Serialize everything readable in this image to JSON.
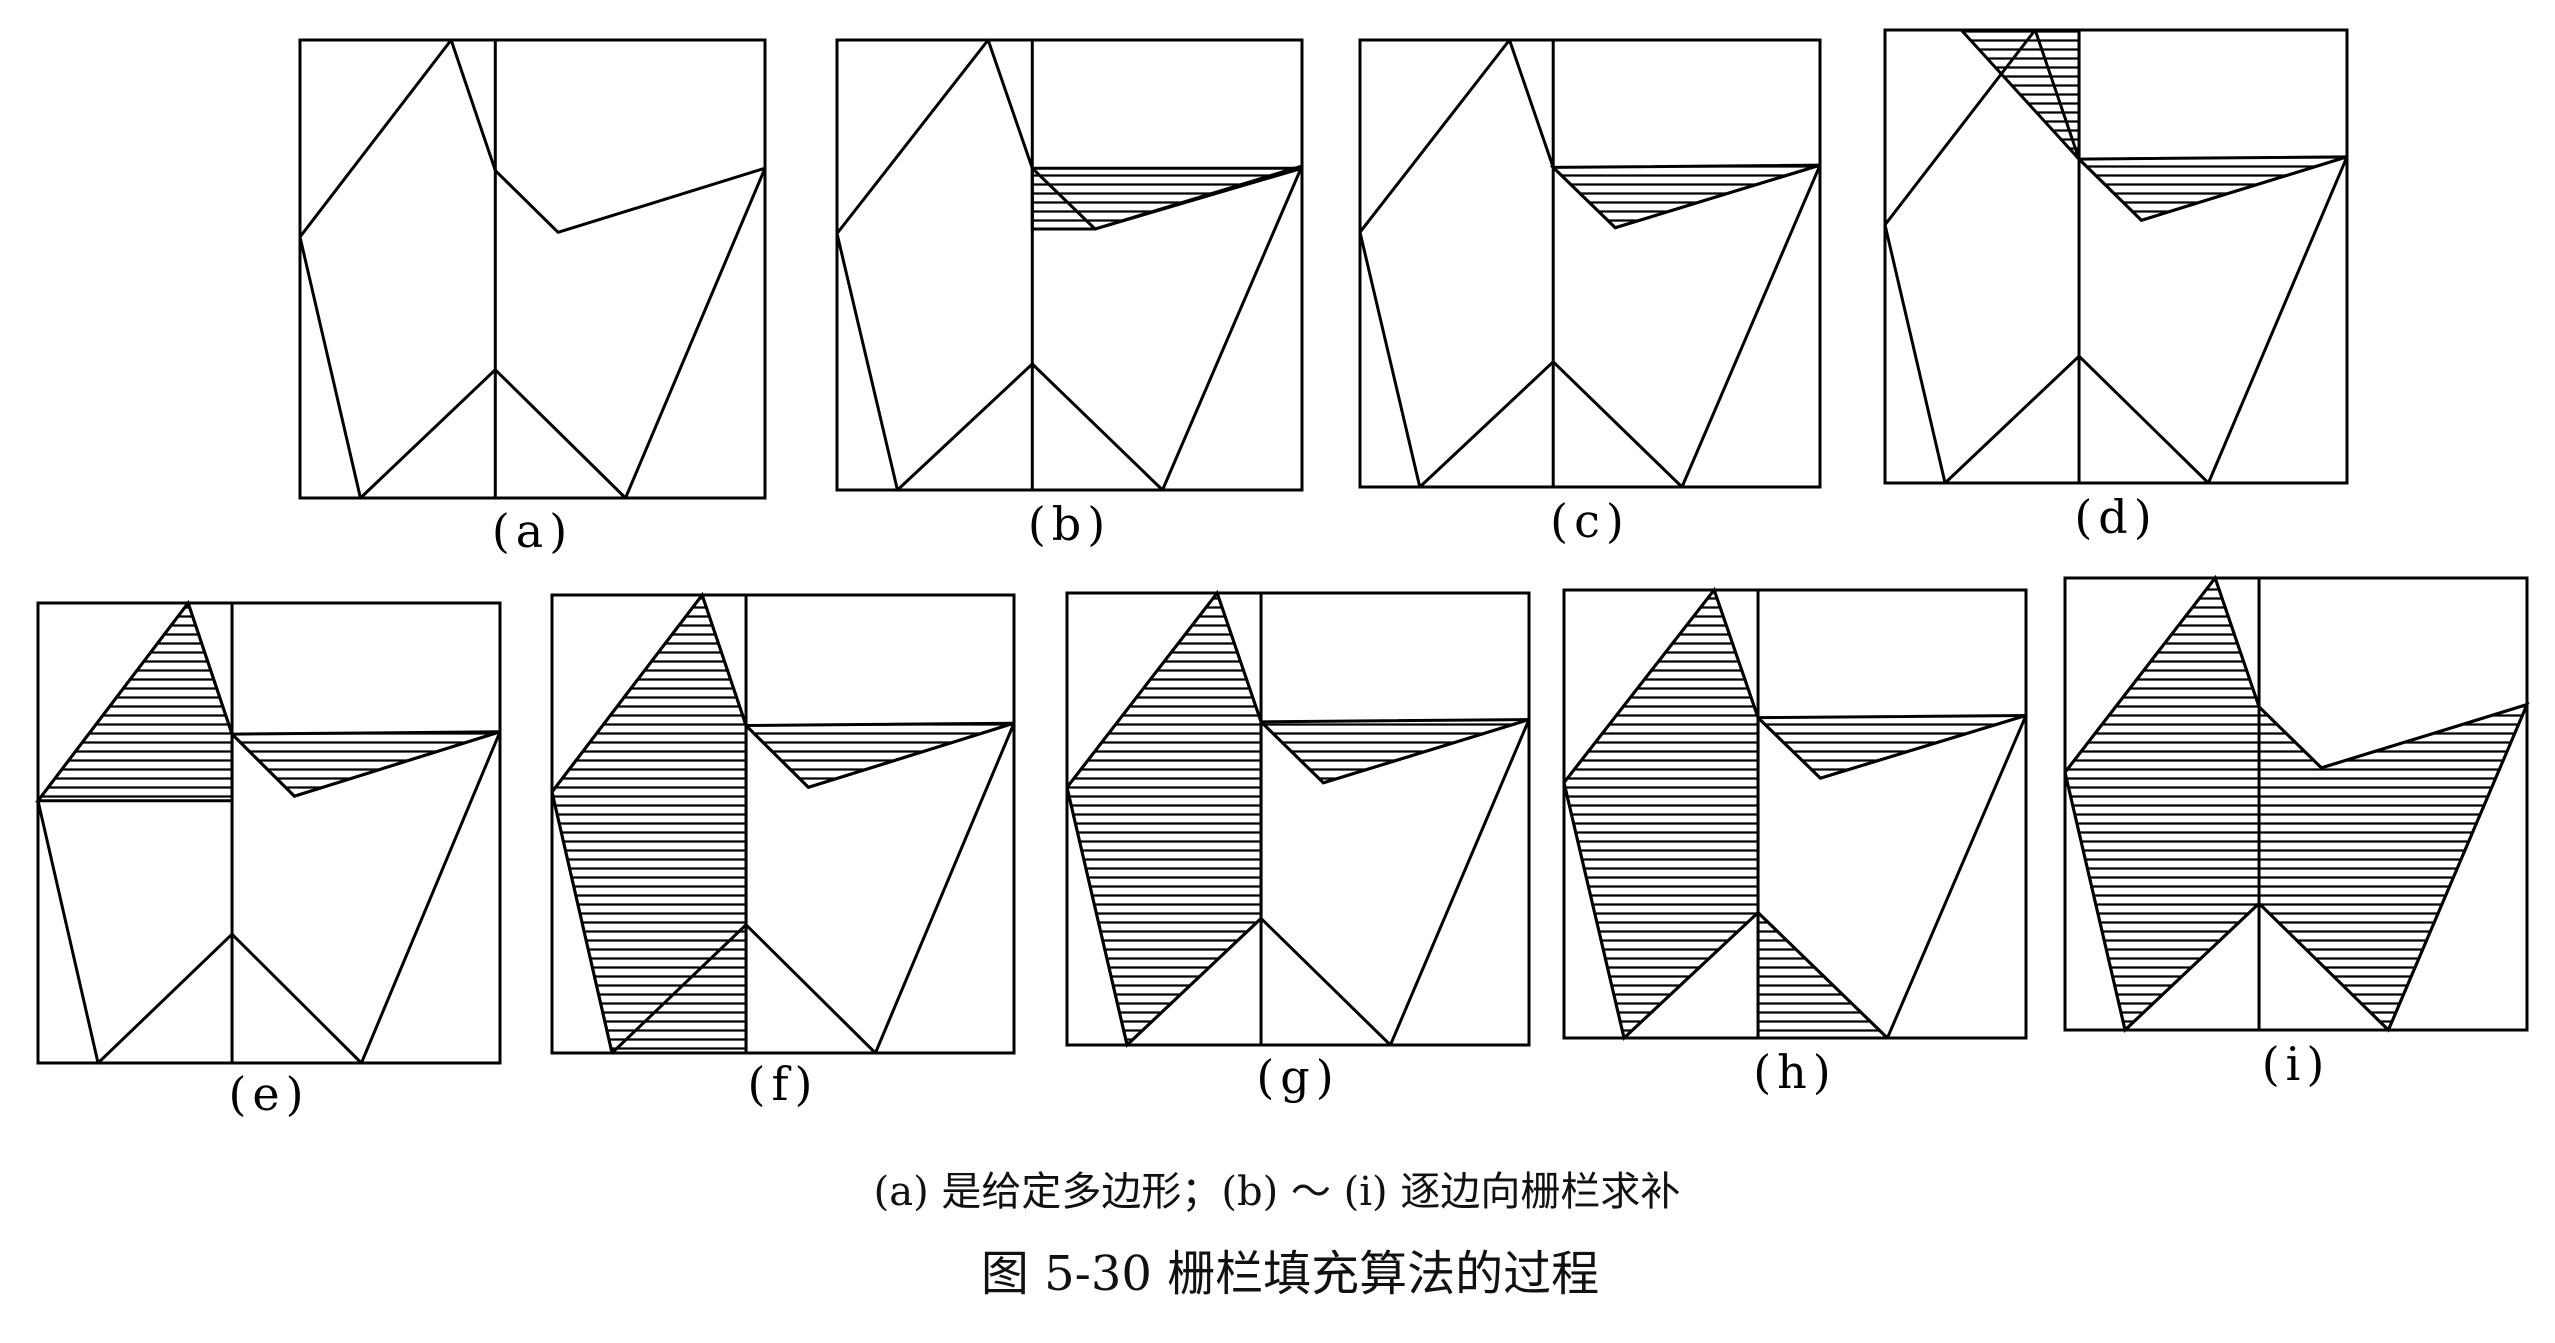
{
  "panels": [
    {
      "id": "a",
      "label": "(a)",
      "fills": []
    },
    {
      "id": "b",
      "label": "(b)",
      "fills": [
        "upper_right_minus"
      ]
    },
    {
      "id": "c",
      "label": "(c)",
      "fills": [
        "upper_right_notch"
      ]
    },
    {
      "id": "d",
      "label": "(d)",
      "fills": [
        "upper_right_notch",
        "top_left_triangle"
      ]
    },
    {
      "id": "e",
      "label": "(e)",
      "fills": [
        "upper_right_notch",
        "left_upper_region"
      ]
    },
    {
      "id": "f",
      "label": "(f)",
      "fills": [
        "upper_right_notch",
        "left_full_region"
      ]
    },
    {
      "id": "g",
      "label": "(g)",
      "fills": [
        "upper_right_notch",
        "left_polygon"
      ]
    },
    {
      "id": "h",
      "label": "(h)",
      "fills": [
        "upper_right_notch",
        "left_polygon",
        "bottom_center_triangle"
      ]
    },
    {
      "id": "i",
      "label": "(i)",
      "fills": [
        "whole_polygon"
      ]
    }
  ],
  "caption": {
    "subtitle": "(a) 是给定多边形；(b) ～ (i) 逐边向栅栏求补",
    "title": "图 5-30    栅栏填充算法的过程"
  },
  "colors": {
    "line": "#000000",
    "hatch": "#000000",
    "background": "#ffffff"
  }
}
